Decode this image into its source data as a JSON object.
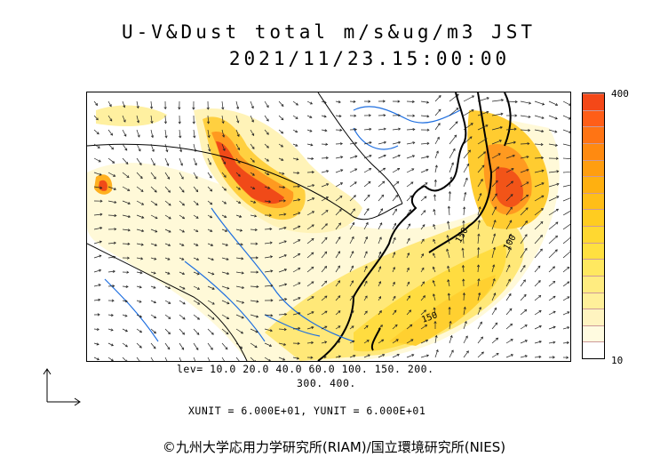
{
  "title": {
    "line1": "U-V&Dust total m/s&ug/m3 JST",
    "line2": "2021/11/23.15:00:00"
  },
  "colorbar": {
    "max_label": "400",
    "min_label": "10",
    "colors": [
      "#ffffff",
      "#fffbe0",
      "#fff4c0",
      "#fff09a",
      "#ffec80",
      "#ffe860",
      "#ffe040",
      "#ffd830",
      "#ffcc20",
      "#ffbe18",
      "#ffb010",
      "#ff9e10",
      "#ff8a10",
      "#ff7414",
      "#ff5e18",
      "#f44818"
    ]
  },
  "legend": {
    "levels_line1": "lev= 10.0 20.0 40.0 60.0 100. 150. 200.",
    "levels_line2": "300. 400.",
    "units": "XUNIT = 6.000E+01, YUNIT = 6.000E+01"
  },
  "map": {
    "contour_labels": [
      "150",
      "150",
      "100"
    ]
  },
  "copyright": "©九州大学応用力学研究所(RIAM)/国立環境研究所(NIES)"
}
